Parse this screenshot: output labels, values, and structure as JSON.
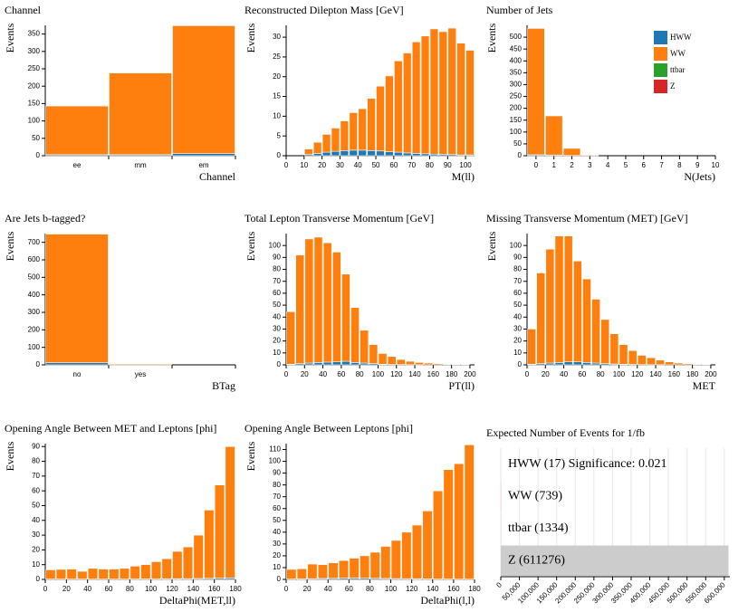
{
  "chart_data": [
    {
      "type": "bar",
      "title": "Channel",
      "x_label": "Channel",
      "y_label": "Events",
      "categories": [
        "ee",
        "mm",
        "em"
      ],
      "series": [
        {
          "name": "HWW",
          "color": "#1f77b4",
          "values": [
            3,
            3,
            6
          ]
        },
        {
          "name": "WW",
          "color": "#ff7f0e",
          "values": [
            140,
            235,
            368
          ]
        }
      ],
      "ylim": [
        0,
        375
      ],
      "yticks": [
        0,
        50,
        100,
        150,
        200,
        250,
        300,
        350
      ]
    },
    {
      "type": "histogram",
      "title": "Reconstructed Dilepton Mass [GeV]",
      "x_label": "M(ll)",
      "y_label": "Events",
      "bins": [
        10,
        15,
        20,
        25,
        30,
        35,
        40,
        45,
        50,
        55,
        60,
        65,
        70,
        75,
        80,
        85,
        90,
        95,
        100,
        105
      ],
      "series": [
        {
          "name": "HWW",
          "color": "#1f77b4",
          "values": [
            0.3,
            0.6,
            0.9,
            1.1,
            1.3,
            1.4,
            1.4,
            1.3,
            1.2,
            1.0,
            0.9,
            0.7,
            0.6,
            0.5,
            0.4,
            0.3,
            0.3,
            0.2,
            0.2
          ]
        },
        {
          "name": "WW",
          "color": "#ff7f0e",
          "values": [
            1.4,
            2.8,
            4.5,
            5.9,
            7.5,
            9.5,
            10.5,
            13.2,
            16.4,
            19.2,
            23.1,
            25.3,
            28.2,
            29.8,
            31.7,
            31.1,
            32.0,
            28.3,
            26.5
          ]
        }
      ],
      "xlim": [
        0,
        105
      ],
      "xticks": [
        0,
        10,
        20,
        30,
        40,
        50,
        60,
        70,
        80,
        90,
        100
      ],
      "ylim": [
        0,
        33
      ],
      "yticks": [
        0,
        5,
        10,
        15,
        20,
        25,
        30
      ]
    },
    {
      "type": "histogram",
      "title": "Number of Jets",
      "x_label": "N(Jets)",
      "y_label": "Events",
      "legend": "upper right",
      "bins": [
        -0.5,
        0.5,
        1.5,
        2.5,
        3.5
      ],
      "series": [
        {
          "name": "HWW",
          "color": "#1f77b4",
          "values": [
            4,
            3,
            1,
            0
          ]
        },
        {
          "name": "WW",
          "color": "#ff7f0e",
          "values": [
            533,
            165,
            30,
            3
          ]
        },
        {
          "name": "ttbar",
          "color": "#2ca02c",
          "values": [
            0,
            0,
            0,
            0
          ]
        },
        {
          "name": "Z",
          "color": "#d62728",
          "values": [
            0,
            0,
            0,
            0
          ]
        }
      ],
      "xlim": [
        -0.5,
        10
      ],
      "xticks": [
        0,
        1,
        2,
        3,
        4,
        5,
        6,
        7,
        8,
        9,
        10
      ],
      "ylim": [
        0,
        550
      ],
      "yticks": [
        0,
        50,
        100,
        150,
        200,
        250,
        300,
        350,
        400,
        450,
        500
      ]
    },
    {
      "type": "bar",
      "title": "Are Jets b-tagged?",
      "x_label": "BTag",
      "y_label": "Events",
      "categories": [
        "no",
        "yes",
        null
      ],
      "series": [
        {
          "name": "HWW",
          "color": "#1f77b4",
          "values": [
            12,
            1,
            0
          ]
        },
        {
          "name": "WW",
          "color": "#ff7f0e",
          "values": [
            735,
            5,
            0
          ]
        }
      ],
      "ylim": [
        0,
        750
      ],
      "yticks": [
        0,
        100,
        200,
        300,
        400,
        500,
        600,
        700
      ]
    },
    {
      "type": "histogram",
      "title": "Total Lepton Transverse Momentum [GeV]",
      "x_label": "PT(ll)",
      "y_label": "Events",
      "bins": [
        0,
        10,
        20,
        30,
        40,
        50,
        60,
        70,
        80,
        90,
        100,
        110,
        120,
        130,
        140,
        150,
        160,
        170,
        180,
        190,
        200
      ],
      "series": [
        {
          "name": "HWW",
          "color": "#1f77b4",
          "values": [
            0.5,
            1,
            1.5,
            2,
            2.3,
            2.5,
            3,
            2,
            1.5,
            1,
            0.5,
            0.3,
            0.2,
            0.1,
            0.1,
            0,
            0,
            0,
            0,
            0
          ]
        },
        {
          "name": "WW",
          "color": "#ff7f0e",
          "values": [
            44,
            91,
            104,
            105,
            100,
            92,
            73,
            46,
            27.5,
            16,
            9,
            6.7,
            4.3,
            2.9,
            1.9,
            1.5,
            1,
            0.5,
            0.3,
            0.2
          ]
        }
      ],
      "xlim": [
        0,
        205
      ],
      "xticks": [
        0,
        20,
        40,
        60,
        80,
        100,
        120,
        140,
        160,
        180,
        200
      ],
      "ylim": [
        0,
        110
      ],
      "yticks": [
        0,
        10,
        20,
        30,
        40,
        50,
        60,
        70,
        80,
        90,
        100
      ]
    },
    {
      "type": "histogram",
      "title": "Missing Transverse Momentum (MET) [GeV]",
      "x_label": "MET",
      "y_label": "Events",
      "bins": [
        0,
        10,
        20,
        30,
        40,
        50,
        60,
        70,
        80,
        90,
        100,
        110,
        120,
        130,
        140,
        150,
        160,
        170,
        180,
        190,
        200
      ],
      "series": [
        {
          "name": "HWW",
          "color": "#1f77b4",
          "values": [
            0.5,
            1,
            1.5,
            2,
            2.5,
            2.5,
            2,
            1.5,
            1,
            0.7,
            0.5,
            0.3,
            0.2,
            0.1,
            0.1,
            0,
            0,
            0,
            0,
            0
          ]
        },
        {
          "name": "WW",
          "color": "#ff7f0e",
          "values": [
            29.5,
            76,
            95.5,
            106,
            105.5,
            84.5,
            70,
            53.5,
            37,
            25.3,
            16.5,
            11.7,
            7.8,
            5.9,
            3.9,
            2.5,
            1.5,
            1,
            0.5,
            0.3
          ]
        }
      ],
      "xlim": [
        0,
        205
      ],
      "xticks": [
        0,
        20,
        40,
        60,
        80,
        100,
        120,
        140,
        160,
        180,
        200
      ],
      "ylim": [
        0,
        110
      ],
      "yticks": [
        0,
        10,
        20,
        30,
        40,
        50,
        60,
        70,
        80,
        90,
        100
      ]
    },
    {
      "type": "histogram",
      "title": "Opening Angle Between MET and Leptons [phi]",
      "x_label": "DeltaPhi(MET,ll)",
      "y_label": "Events",
      "bins": [
        0,
        10,
        20,
        30,
        40,
        50,
        60,
        70,
        80,
        90,
        100,
        110,
        120,
        130,
        140,
        150,
        160,
        170,
        180
      ],
      "series": [
        {
          "name": "HWW",
          "color": "#1f77b4",
          "values": [
            0.2,
            0.2,
            0.2,
            0.2,
            0.2,
            0.2,
            0.2,
            0.2,
            0.3,
            0.3,
            0.3,
            0.4,
            0.4,
            0.5,
            0.6,
            0.7,
            0.8,
            1
          ]
        },
        {
          "name": "WW",
          "color": "#ff7f0e",
          "values": [
            6.3,
            6.6,
            6.8,
            5.3,
            7.3,
            6.8,
            6.8,
            7.3,
            8.7,
            9.7,
            11.7,
            13.6,
            18.6,
            21.5,
            29.4,
            46.3,
            63.2,
            89
          ]
        }
      ],
      "xlim": [
        0,
        180
      ],
      "xticks": [
        0,
        20,
        40,
        60,
        80,
        100,
        120,
        140,
        160,
        180
      ],
      "ylim": [
        0,
        92
      ],
      "yticks": [
        0,
        10,
        20,
        30,
        40,
        50,
        60,
        70,
        80,
        90
      ]
    },
    {
      "type": "histogram",
      "title": "Opening Angle Between Leptons [phi]",
      "x_label": "DeltaPhi(l,l)",
      "y_label": "Events",
      "bins": [
        0,
        10,
        20,
        30,
        40,
        50,
        60,
        70,
        80,
        90,
        100,
        110,
        120,
        130,
        140,
        150,
        160,
        170,
        180
      ],
      "series": [
        {
          "name": "HWW",
          "color": "#1f77b4",
          "values": [
            0.3,
            0.4,
            0.6,
            0.8,
            0.9,
            1,
            1.1,
            1,
            0.9,
            0.8,
            0.7,
            0.6,
            0.5,
            0.4,
            0.3,
            0.3,
            0.2,
            0.2
          ]
        },
        {
          "name": "WW",
          "color": "#ff7f0e",
          "values": [
            8.2,
            8.6,
            12.4,
            11.7,
            13.1,
            15,
            16.9,
            19,
            22.1,
            27.2,
            32.3,
            39.4,
            45.5,
            57.6,
            74.7,
            92.7,
            97.8,
            113.8
          ]
        }
      ],
      "xlim": [
        0,
        180
      ],
      "xticks": [
        0,
        20,
        40,
        60,
        80,
        100,
        120,
        140,
        160,
        180
      ],
      "ylim": [
        0,
        115
      ],
      "yticks": [
        0,
        10,
        20,
        30,
        40,
        50,
        60,
        70,
        80,
        90,
        100,
        110
      ]
    },
    {
      "type": "hbar",
      "title": "Expected Number of Events for 1/fb",
      "categories": [
        "HWW (17) Significance: 0.021",
        "WW (739)",
        "ttbar (1334)",
        "Z (611276)"
      ],
      "values": [
        17,
        739,
        1334,
        611276
      ],
      "colors": [
        "#dddddd",
        "#f2b0b0",
        "#dddddd",
        "#cccccc"
      ],
      "xlim": [
        0,
        615000
      ],
      "grid": true,
      "xticks": [
        0,
        {
          "value": 50000,
          "label": "50,000"
        },
        {
          "value": 100000,
          "label": "100,000"
        },
        {
          "value": 150000,
          "label": "150,000"
        },
        {
          "value": 200000,
          "label": "200,000"
        },
        {
          "value": 250000,
          "label": "250,000"
        },
        {
          "value": 300000,
          "label": "300,000"
        },
        {
          "value": 350000,
          "label": "350,000"
        },
        {
          "value": 400000,
          "label": "400,000"
        },
        {
          "value": 450000,
          "label": "450,000"
        },
        {
          "value": 500000,
          "label": "500,000"
        },
        {
          "value": 550000,
          "label": "550,000"
        },
        {
          "value": 600000,
          "label": "600,000"
        }
      ]
    }
  ]
}
